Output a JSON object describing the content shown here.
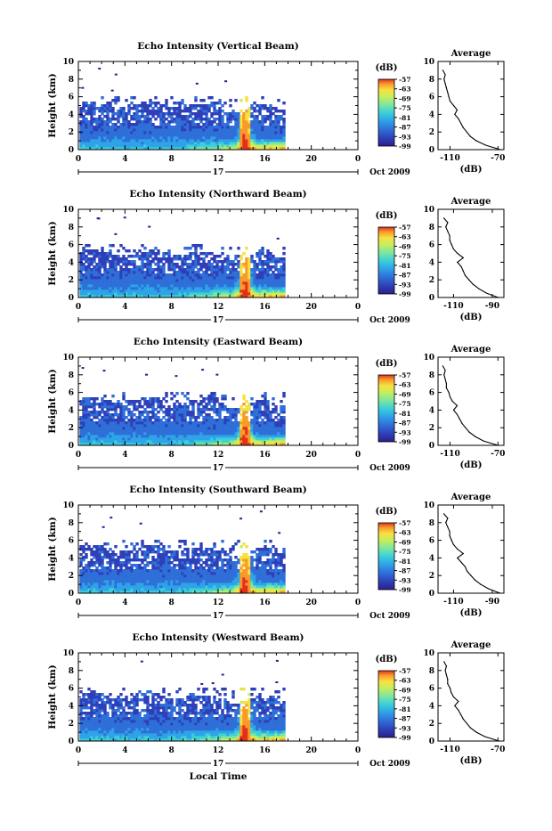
{
  "chart_data": [
    {
      "type": "heatmap",
      "title": "Echo Intensity (Vertical Beam)",
      "ylabel": "Height (km)",
      "ylim": [
        0,
        10
      ],
      "yticks": [
        "0",
        "2",
        "4",
        "6",
        "8",
        "10"
      ],
      "xlim": [
        0,
        24
      ],
      "xticks": [
        "0",
        "4",
        "8",
        "12",
        "16",
        "20",
        "0"
      ],
      "date_label": "17",
      "month_label": "Oct 2009",
      "colorbar": {
        "unit": "(dB)",
        "ticks": [
          "-57",
          "-63",
          "-69",
          "-75",
          "-81",
          "-87",
          "-93",
          "-99"
        ],
        "range": [
          -99,
          -57
        ]
      },
      "profile": {
        "title": "Average",
        "xlabel": "(dB)",
        "xticks": [
          "-110",
          "-70"
        ],
        "xlim": [
          -120,
          -65
        ],
        "ylim": [
          0,
          10
        ],
        "heights": [
          0,
          0.5,
          1,
          1.5,
          2,
          2.5,
          3,
          3.5,
          4,
          4.5,
          5,
          5.5,
          6,
          6.5,
          7,
          7.5,
          8,
          8.5,
          9
        ],
        "values": [
          -68,
          -80,
          -88,
          -93,
          -96,
          -99,
          -101,
          -103,
          -106,
          -104,
          -107,
          -110,
          -111,
          -112,
          -113,
          -114,
          -115,
          -114,
          -116
        ]
      }
    },
    {
      "type": "heatmap",
      "title": "Echo Intensity (Northward Beam)",
      "ylabel": "Height (km)",
      "ylim": [
        0,
        10
      ],
      "yticks": [
        "0",
        "2",
        "4",
        "6",
        "8",
        "10"
      ],
      "xlim": [
        0,
        24
      ],
      "xticks": [
        "0",
        "4",
        "8",
        "12",
        "16",
        "20",
        "0"
      ],
      "date_label": "17",
      "month_label": "Oct 2009",
      "colorbar": {
        "unit": "(dB)",
        "ticks": [
          "-57",
          "-63",
          "-69",
          "-75",
          "-81",
          "-87",
          "-93",
          "-99"
        ],
        "range": [
          -99,
          -57
        ]
      },
      "profile": {
        "title": "Average",
        "xlabel": "(dB)",
        "xticks": [
          "-110",
          "-90"
        ],
        "xlim": [
          -118,
          -84
        ],
        "ylim": [
          0,
          10
        ],
        "heights": [
          0,
          0.5,
          1,
          1.5,
          2,
          2.5,
          3,
          3.5,
          4,
          4.5,
          5,
          5.5,
          6,
          6.5,
          7,
          7.5,
          8,
          8.5,
          9
        ],
        "values": [
          -87,
          -93,
          -97,
          -100,
          -102,
          -104,
          -105,
          -106,
          -108,
          -105,
          -108,
          -110,
          -111,
          -112,
          -112,
          -113,
          -114,
          -113,
          -115
        ]
      }
    },
    {
      "type": "heatmap",
      "title": "Echo Intensity (Eastward Beam)",
      "ylabel": "Height (km)",
      "ylim": [
        0,
        10
      ],
      "yticks": [
        "0",
        "2",
        "4",
        "6",
        "8",
        "10"
      ],
      "xlim": [
        0,
        24
      ],
      "xticks": [
        "0",
        "4",
        "8",
        "12",
        "16",
        "20",
        "0"
      ],
      "date_label": "17",
      "month_label": "Oct 2009",
      "colorbar": {
        "unit": "(dB)",
        "ticks": [
          "-57",
          "-63",
          "-69",
          "-75",
          "-81",
          "-87",
          "-93",
          "-99"
        ],
        "range": [
          -99,
          -57
        ]
      },
      "profile": {
        "title": "Average",
        "xlabel": "(dB)",
        "xticks": [
          "-110",
          "-70"
        ],
        "xlim": [
          -120,
          -65
        ],
        "ylim": [
          0,
          10
        ],
        "heights": [
          0,
          0.5,
          1,
          1.5,
          2,
          2.5,
          3,
          3.5,
          4,
          4.5,
          5,
          5.5,
          6,
          6.5,
          7,
          7.5,
          8,
          8.5,
          9
        ],
        "values": [
          -70,
          -82,
          -89,
          -94,
          -97,
          -100,
          -102,
          -104,
          -107,
          -104,
          -108,
          -110,
          -111,
          -113,
          -113,
          -114,
          -115,
          -114,
          -116
        ]
      }
    },
    {
      "type": "heatmap",
      "title": "Echo Intensity (Southward Beam)",
      "ylabel": "Height (km)",
      "ylim": [
        0,
        10
      ],
      "yticks": [
        "0",
        "2",
        "4",
        "6",
        "8",
        "10"
      ],
      "xlim": [
        0,
        24
      ],
      "xticks": [
        "0",
        "4",
        "8",
        "12",
        "16",
        "20",
        "0"
      ],
      "date_label": "17",
      "month_label": "Oct 2009",
      "colorbar": {
        "unit": "(dB)",
        "ticks": [
          "-57",
          "-63",
          "-69",
          "-75",
          "-81",
          "-87",
          "-93",
          "-99"
        ],
        "range": [
          -99,
          -57
        ]
      },
      "profile": {
        "title": "Average",
        "xlabel": "(dB)",
        "xticks": [
          "-110",
          "-90"
        ],
        "xlim": [
          -118,
          -84
        ],
        "ylim": [
          0,
          10
        ],
        "heights": [
          0,
          0.5,
          1,
          1.5,
          2,
          2.5,
          3,
          3.5,
          4,
          4.5,
          5,
          5.5,
          6,
          6.5,
          7,
          7.5,
          8,
          8.5,
          9
        ],
        "values": [
          -86,
          -92,
          -96,
          -99,
          -101,
          -103,
          -104,
          -106,
          -108,
          -105,
          -108,
          -110,
          -111,
          -112,
          -112,
          -113,
          -114,
          -113,
          -115
        ]
      }
    },
    {
      "type": "heatmap",
      "title": "Echo Intensity (Westward Beam)",
      "ylabel": "Height (km)",
      "ylim": [
        0,
        10
      ],
      "yticks": [
        "0",
        "2",
        "4",
        "6",
        "8",
        "10"
      ],
      "xlim": [
        0,
        24
      ],
      "xticks": [
        "0",
        "4",
        "8",
        "12",
        "16",
        "20",
        "0"
      ],
      "date_label": "17",
      "month_label": "Oct 2009",
      "xlabel": "Local Time",
      "colorbar": {
        "unit": "(dB)",
        "ticks": [
          "-57",
          "-63",
          "-69",
          "-75",
          "-81",
          "-87",
          "-93",
          "-99"
        ],
        "range": [
          -99,
          -57
        ]
      },
      "profile": {
        "title": "Average",
        "xlabel": "(dB)",
        "xticks": [
          "-110",
          "-70"
        ],
        "xlim": [
          -120,
          -65
        ],
        "ylim": [
          0,
          10
        ],
        "heights": [
          0,
          0.5,
          1,
          1.5,
          2,
          2.5,
          3,
          3.5,
          4,
          4.5,
          5,
          5.5,
          6,
          6.5,
          7,
          7.5,
          8,
          8.5,
          9
        ],
        "values": [
          -69,
          -81,
          -88,
          -93,
          -96,
          -99,
          -101,
          -103,
          -106,
          -103,
          -107,
          -109,
          -110,
          -112,
          -112,
          -113,
          -114,
          -113,
          -115
        ]
      }
    }
  ],
  "colors": {
    "colormap": [
      "#2a1f8c",
      "#2f3fb8",
      "#2f6fd8",
      "#2ea3e8",
      "#3cd0d8",
      "#7ee6a0",
      "#c8ee5c",
      "#f8e040",
      "#f89a2a",
      "#e2301c"
    ],
    "axis": "#000000"
  }
}
